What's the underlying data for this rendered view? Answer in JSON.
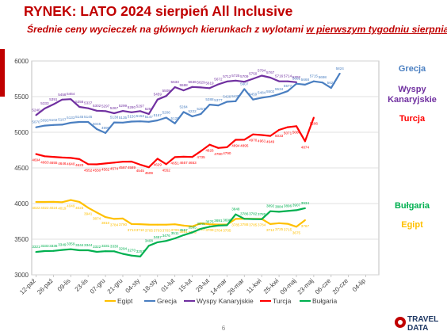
{
  "header": {
    "title": "RYNEK: LATO 2024 sierpień All Inclusive",
    "subtitle_prefix": "Średnie ceny wycieczek na głównych kierunkach z wylotami ",
    "subtitle_highlight": "w pierwszym tygodniu sierpnia"
  },
  "footer": {
    "page_number": "6",
    "logo_text_top": "TRAVEL",
    "logo_text_bottom": "DATA"
  },
  "colors": {
    "grecja": "#4a7fc1",
    "wyspy": "#7030a0",
    "turcja": "#ff0000",
    "bulgaria": "#00b050",
    "egipt": "#ffc000",
    "accent": "#c00000"
  },
  "chart_data": {
    "type": "line",
    "ylim": [
      3000,
      6000
    ],
    "yticks": [
      3000,
      3500,
      4000,
      4500,
      5000,
      5500,
      6000
    ],
    "x_tick_labels": [
      "12-paź",
      "26-paź",
      "09-lis",
      "23-lis",
      "07-gru",
      "21-gru",
      "04-sty",
      "18-sty",
      "01-lut",
      "15-lut",
      "29-lut",
      "14-mar",
      "28-mar",
      "11-kwi",
      "25-kwi",
      "09-maj",
      "23-maj",
      "06-cze",
      "20-cze",
      "04-lip"
    ],
    "legend_position": "bottom",
    "series": [
      {
        "name": "Grecja",
        "key": "grecja",
        "label_position": "right",
        "start_index": 0,
        "values": [
          5070,
          5093,
          5102,
          5107,
          5133,
          5145,
          5145,
          5045,
          4990,
          5138,
          5135,
          5150,
          5153,
          5147,
          5167,
          5206,
          5125,
          5284,
          5222,
          5257,
          5388,
          5377,
          5428,
          5435,
          5607,
          5459,
          5484,
          5502,
          5534,
          5577,
          5681,
          5668,
          5715,
          5698,
          5621,
          5824
        ],
        "point_labels": [
          {
            "i": 0,
            "t": "5070"
          },
          {
            "i": 1,
            "t": "5093"
          },
          {
            "i": 2,
            "t": "5102"
          },
          {
            "i": 3,
            "t": "5107"
          },
          {
            "i": 4,
            "t": "5133"
          },
          {
            "i": 5,
            "t": "5145"
          },
          {
            "i": 6,
            "t": "5145"
          },
          {
            "i": 7,
            "t": "5045"
          },
          {
            "i": 8,
            "t": "4990"
          },
          {
            "i": 9,
            "t": "5138"
          },
          {
            "i": 10,
            "t": "5135"
          },
          {
            "i": 11,
            "t": "5150"
          },
          {
            "i": 12,
            "t": "5153"
          },
          {
            "i": 13,
            "t": "5147"
          },
          {
            "i": 14,
            "t": "5167"
          },
          {
            "i": 15,
            "t": "5206"
          },
          {
            "i": 16,
            "t": "5125"
          },
          {
            "i": 17,
            "t": "5284"
          },
          {
            "i": 18,
            "t": "5222"
          },
          {
            "i": 19,
            "t": "5257"
          },
          {
            "i": 20,
            "t": "5388"
          },
          {
            "i": 21,
            "t": "5377"
          },
          {
            "i": 22,
            "t": "5428"
          },
          {
            "i": 23,
            "t": "5435"
          },
          {
            "i": 24,
            "t": "5607"
          },
          {
            "i": 25,
            "t": "5459"
          },
          {
            "i": 26,
            "t": "5484"
          },
          {
            "i": 27,
            "t": "5502"
          },
          {
            "i": 28,
            "t": "5534"
          },
          {
            "i": 29,
            "t": "5577"
          },
          {
            "i": 30,
            "t": "5681"
          },
          {
            "i": 31,
            "t": "5668"
          },
          {
            "i": 32,
            "t": "5715"
          },
          {
            "i": 33,
            "t": "5698"
          },
          {
            "i": 34,
            "t": "5621"
          },
          {
            "i": 35,
            "t": "5824"
          }
        ]
      },
      {
        "name": "Wyspy Kanaryjskie",
        "key": "wyspy",
        "label_position": "right",
        "start_index": 0,
        "values": [
          5240,
          5333,
          5391,
          5458,
          5464,
          5356,
          5337,
          5302,
          5297,
          5267,
          5299,
          5280,
          5297,
          5257,
          5459,
          5509,
          5633,
          5588,
          5636,
          5629,
          5619,
          5672,
          5712,
          5725,
          5709,
          5750,
          5794,
          5767,
          5716,
          5714,
          5702
        ],
        "point_labels": [
          {
            "i": 0,
            "t": "5240"
          },
          {
            "i": 1,
            "t": "5333"
          },
          {
            "i": 2,
            "t": "5391"
          },
          {
            "i": 3,
            "t": "5458"
          },
          {
            "i": 4,
            "t": "5464"
          },
          {
            "i": 5,
            "t": "5356"
          },
          {
            "i": 6,
            "t": "5337"
          },
          {
            "i": 7,
            "t": "5302"
          },
          {
            "i": 8,
            "t": "5297"
          },
          {
            "i": 9,
            "t": "5267"
          },
          {
            "i": 10,
            "t": "5299"
          },
          {
            "i": 11,
            "t": "5280"
          },
          {
            "i": 12,
            "t": "5297"
          },
          {
            "i": 13,
            "t": "5257"
          },
          {
            "i": 14,
            "t": "5459"
          },
          {
            "i": 15,
            "t": "5509"
          },
          {
            "i": 16,
            "t": "5633"
          },
          {
            "i": 17,
            "t": "5588"
          },
          {
            "i": 18,
            "t": "5636"
          },
          {
            "i": 19,
            "t": "5629"
          },
          {
            "i": 20,
            "t": "5619"
          },
          {
            "i": 21,
            "t": "5672"
          },
          {
            "i": 22,
            "t": "5712"
          },
          {
            "i": 23,
            "t": "5725"
          },
          {
            "i": 24,
            "t": "5709"
          },
          {
            "i": 25,
            "t": "5750"
          },
          {
            "i": 26,
            "t": "5794"
          },
          {
            "i": 27,
            "t": "5767"
          },
          {
            "i": 28,
            "t": "5716"
          },
          {
            "i": 29,
            "t": "5714"
          },
          {
            "i": 30,
            "t": "5702"
          }
        ]
      },
      {
        "name": "Turcja",
        "key": "turcja",
        "label_position": "right",
        "start_index": 0,
        "values": [
          4694,
          4663,
          4655,
          4646,
          4640,
          4623,
          4552,
          4550,
          4562,
          4574,
          4587,
          4589,
          4545,
          4509,
          4629,
          4552,
          4651,
          4657,
          4653,
          4735,
          4826,
          4780,
          4790,
          4894,
          4895,
          4970,
          4961,
          4949,
          5033,
          5071,
          5086,
          4874,
          5206
        ],
        "point_labels": [
          {
            "i": 0,
            "t": "4694"
          },
          {
            "i": 1,
            "t": "4663"
          },
          {
            "i": 2,
            "t": "4655"
          },
          {
            "i": 3,
            "t": "4646"
          },
          {
            "i": 4,
            "t": "4640"
          },
          {
            "i": 5,
            "t": "4623"
          },
          {
            "i": 6,
            "t": "4552"
          },
          {
            "i": 7,
            "t": "4550"
          },
          {
            "i": 8,
            "t": "4562"
          },
          {
            "i": 9,
            "t": "4574"
          },
          {
            "i": 10,
            "t": "4587"
          },
          {
            "i": 11,
            "t": "4589"
          },
          {
            "i": 12,
            "t": "4545"
          },
          {
            "i": 13,
            "t": "4509"
          },
          {
            "i": 14,
            "t": "4629"
          },
          {
            "i": 15,
            "t": "4552"
          },
          {
            "i": 16,
            "t": "4651"
          },
          {
            "i": 17,
            "t": "4657"
          },
          {
            "i": 18,
            "t": "4653"
          },
          {
            "i": 19,
            "t": "4735"
          },
          {
            "i": 20,
            "t": "4826"
          },
          {
            "i": 21,
            "t": "4780"
          },
          {
            "i": 22,
            "t": "4790"
          },
          {
            "i": 23,
            "t": "4894"
          },
          {
            "i": 24,
            "t": "4895"
          },
          {
            "i": 25,
            "t": "4970"
          },
          {
            "i": 26,
            "t": "4961"
          },
          {
            "i": 27,
            "t": "4949"
          },
          {
            "i": 28,
            "t": "5033"
          },
          {
            "i": 29,
            "t": "5071"
          },
          {
            "i": 30,
            "t": "5086"
          },
          {
            "i": 31,
            "t": "4874"
          },
          {
            "i": 32,
            "t": "5206"
          }
        ]
      },
      {
        "name": "Bułgaria",
        "key": "bulgaria",
        "label_position": "right",
        "start_index": 0,
        "values": [
          3321,
          3333,
          3336,
          3349,
          3359,
          3344,
          3344,
          3322,
          3331,
          3330,
          3294,
          3270,
          3257,
          3408,
          3457,
          3476,
          3511,
          3557,
          3595,
          3645,
          3675,
          3691,
          3696,
          3848,
          3786,
          3782,
          3780,
          3892,
          3884,
          3896,
          3907,
          3934
        ],
        "point_labels": [
          {
            "i": 0,
            "t": "3321"
          },
          {
            "i": 1,
            "t": "3333"
          },
          {
            "i": 2,
            "t": "3336"
          },
          {
            "i": 3,
            "t": "3349"
          },
          {
            "i": 4,
            "t": "3359"
          },
          {
            "i": 5,
            "t": "3344"
          },
          {
            "i": 6,
            "t": "3344"
          },
          {
            "i": 7,
            "t": "3322"
          },
          {
            "i": 8,
            "t": "3331"
          },
          {
            "i": 9,
            "t": "3330"
          },
          {
            "i": 10,
            "t": "3294"
          },
          {
            "i": 11,
            "t": "3270"
          },
          {
            "i": 12,
            "t": "3257"
          },
          {
            "i": 13,
            "t": "3408"
          },
          {
            "i": 14,
            "t": "3457"
          },
          {
            "i": 15,
            "t": "3476"
          },
          {
            "i": 16,
            "t": "3511"
          },
          {
            "i": 17,
            "t": "3557"
          },
          {
            "i": 18,
            "t": "3595"
          },
          {
            "i": 19,
            "t": "3645"
          },
          {
            "i": 20,
            "t": "3675"
          },
          {
            "i": 21,
            "t": "3691"
          },
          {
            "i": 22,
            "t": "3696"
          },
          {
            "i": 23,
            "t": "3848"
          },
          {
            "i": 24,
            "t": "3786"
          },
          {
            "i": 25,
            "t": "3782"
          },
          {
            "i": 26,
            "t": "3780"
          },
          {
            "i": 27,
            "t": "3892"
          },
          {
            "i": 28,
            "t": "3884"
          },
          {
            "i": 29,
            "t": "3896"
          },
          {
            "i": 30,
            "t": "3907"
          },
          {
            "i": 31,
            "t": "3934"
          }
        ]
      },
      {
        "name": "Egipt",
        "key": "egipt",
        "label_position": "right",
        "start_index": 0,
        "values": [
          4022,
          4022,
          4024,
          4019,
          4049,
          4023,
          3941,
          3874,
          3810,
          3784,
          3790,
          3713,
          3710,
          3705,
          3703,
          3703,
          3709,
          3691,
          3679,
          3722,
          3709,
          3704,
          3705,
          3785,
          3788,
          3785,
          3784,
          3712,
          3725,
          3715,
          3675,
          3767
        ],
        "point_labels": [
          {
            "i": 0,
            "t": "4022"
          },
          {
            "i": 1,
            "t": "4022"
          },
          {
            "i": 2,
            "t": "4024"
          },
          {
            "i": 3,
            "t": "4019"
          },
          {
            "i": 4,
            "t": "4049"
          },
          {
            "i": 5,
            "t": "4023"
          },
          {
            "i": 6,
            "t": "3941"
          },
          {
            "i": 7,
            "t": "3874"
          },
          {
            "i": 8,
            "t": "3810"
          },
          {
            "i": 9,
            "t": "3784"
          },
          {
            "i": 10,
            "t": "3790"
          },
          {
            "i": 11,
            "t": "3713"
          },
          {
            "i": 12,
            "t": "3710"
          },
          {
            "i": 13,
            "t": "3705"
          },
          {
            "i": 14,
            "t": "3703"
          },
          {
            "i": 15,
            "t": "3703"
          },
          {
            "i": 16,
            "t": "3709"
          },
          {
            "i": 17,
            "t": "3691"
          },
          {
            "i": 18,
            "t": "3679"
          },
          {
            "i": 19,
            "t": "3722"
          },
          {
            "i": 20,
            "t": "3709"
          },
          {
            "i": 21,
            "t": "3704"
          },
          {
            "i": 22,
            "t": "3705"
          },
          {
            "i": 23,
            "t": "3785"
          },
          {
            "i": 24,
            "t": "3788"
          },
          {
            "i": 25,
            "t": "3785"
          },
          {
            "i": 26,
            "t": "3784"
          },
          {
            "i": 27,
            "t": "3712"
          },
          {
            "i": 28,
            "t": "3725"
          },
          {
            "i": 29,
            "t": "3715"
          },
          {
            "i": 30,
            "t": "3675"
          },
          {
            "i": 31,
            "t": "3767"
          }
        ]
      }
    ],
    "right_labels": [
      {
        "key": "grecja",
        "text": "Grecja"
      },
      {
        "key": "wyspy",
        "text": "Wyspy\nKanaryjskie"
      },
      {
        "key": "turcja",
        "text": "Turcja"
      },
      {
        "key": "bulgaria",
        "text": "Bułgaria"
      },
      {
        "key": "egipt",
        "text": "Egipt"
      }
    ],
    "legend": [
      {
        "key": "egipt",
        "text": "Egipt"
      },
      {
        "key": "grecja",
        "text": "Grecja"
      },
      {
        "key": "wyspy",
        "text": "Wyspy Kanaryjskie"
      },
      {
        "key": "turcja",
        "text": "Turcja"
      },
      {
        "key": "bulgaria",
        "text": "Bułgaria"
      }
    ]
  }
}
